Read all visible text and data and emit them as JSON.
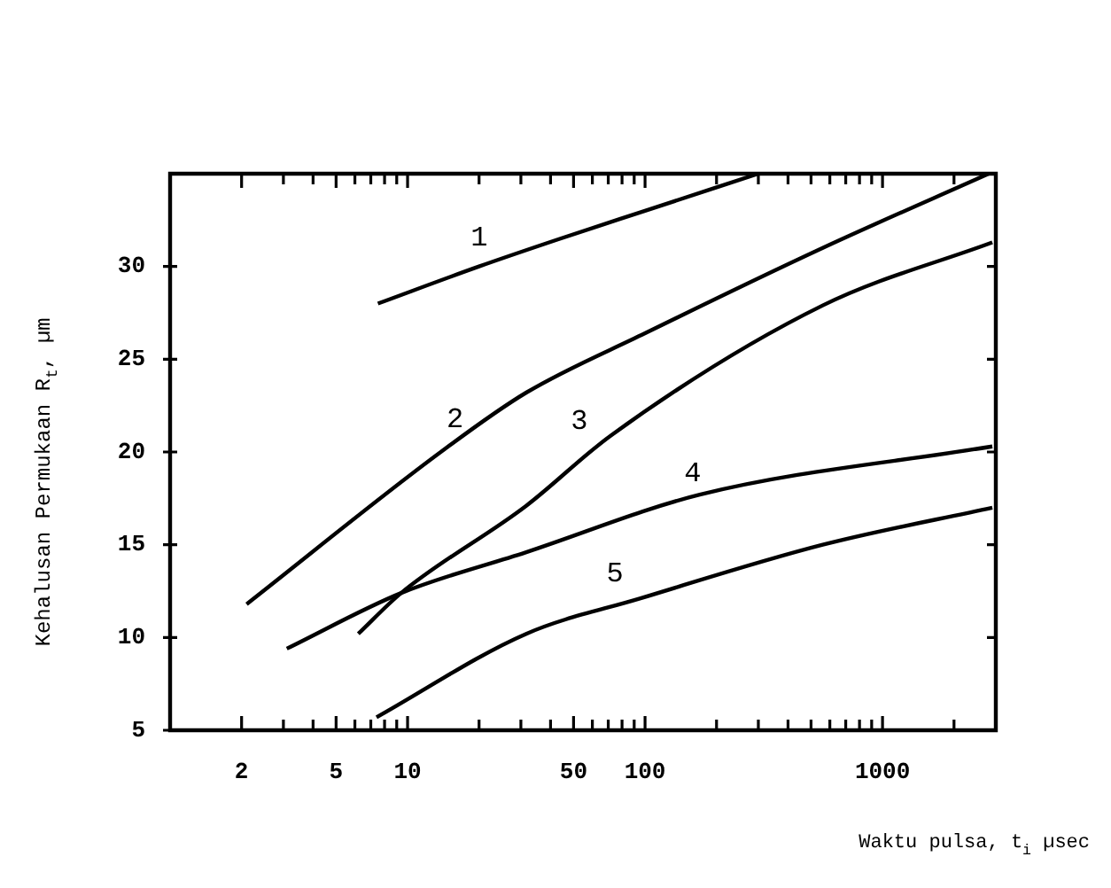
{
  "chart_data": {
    "type": "line",
    "xlabel": "Waktu pulsa, t$_{i}$ µsec",
    "ylabel": "Kehalusan Permukaan R$_{t}$, µm",
    "log": "x",
    "xlim": [
      1,
      3000
    ],
    "ylim": [
      5,
      35
    ],
    "xticks": [
      {
        "value": 2,
        "label": "2"
      },
      {
        "value": 3,
        "label": null
      },
      {
        "value": 4,
        "label": null
      },
      {
        "value": 5,
        "label": "5"
      },
      {
        "value": 6,
        "label": null
      },
      {
        "value": 7,
        "label": null
      },
      {
        "value": 8,
        "label": null
      },
      {
        "value": 9,
        "label": null
      },
      {
        "value": 10,
        "label": "10"
      },
      {
        "value": 20,
        "label": null
      },
      {
        "value": 30,
        "label": null
      },
      {
        "value": 40,
        "label": null
      },
      {
        "value": 50,
        "label": "50"
      },
      {
        "value": 60,
        "label": null
      },
      {
        "value": 70,
        "label": null
      },
      {
        "value": 80,
        "label": null
      },
      {
        "value": 90,
        "label": null
      },
      {
        "value": 100,
        "label": "100"
      },
      {
        "value": 200,
        "label": null
      },
      {
        "value": 300,
        "label": null
      },
      {
        "value": 400,
        "label": null
      },
      {
        "value": 500,
        "label": null
      },
      {
        "value": 600,
        "label": null
      },
      {
        "value": 700,
        "label": null
      },
      {
        "value": 800,
        "label": null
      },
      {
        "value": 900,
        "label": null
      },
      {
        "value": 1000,
        "label": "1000"
      },
      {
        "value": 2000,
        "label": null
      }
    ],
    "yticks": [
      5,
      10,
      15,
      20,
      25,
      30
    ],
    "grid": false,
    "legend": false,
    "marker": "none",
    "line_style": "solid",
    "series": [
      {
        "name": "1",
        "color": "#000000",
        "x": [
          7.5,
          20,
          44,
          100,
          300
        ],
        "values": [
          28,
          30,
          31.5,
          33,
          35
        ]
      },
      {
        "name": "2",
        "color": "#000000",
        "x": [
          2.1,
          13.8,
          31.6,
          100,
          560,
          2800
        ],
        "values": [
          11.8,
          20,
          23.2,
          26.4,
          31,
          35
        ]
      },
      {
        "name": "3",
        "color": "#000000",
        "x": [
          6.2,
          9.4,
          31.6,
          72,
          560,
          2900
        ],
        "values": [
          10.2,
          12.4,
          17.1,
          20.9,
          27.9,
          31.3
        ]
      },
      {
        "name": "4",
        "color": "#000000",
        "x": [
          3.1,
          9.4,
          31.6,
          170,
          2900
        ],
        "values": [
          9.4,
          12.4,
          14.6,
          17.7,
          20.3
        ]
      },
      {
        "name": "5",
        "color": "#000000",
        "x": [
          7.4,
          31.6,
          95,
          560,
          2900
        ],
        "values": [
          5.7,
          10.2,
          12.1,
          15,
          17
        ]
      }
    ]
  }
}
